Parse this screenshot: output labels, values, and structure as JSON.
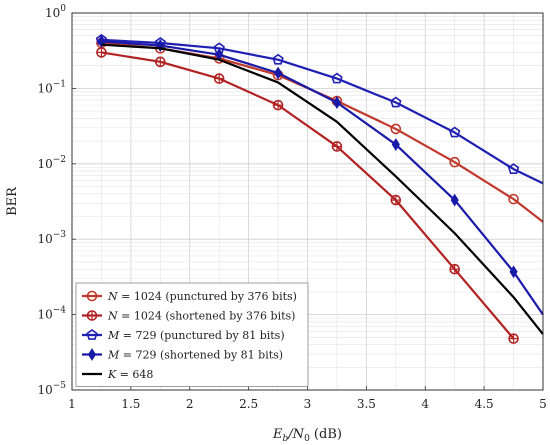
{
  "chart_data": {
    "type": "line",
    "xlabel_main": "E",
    "xlabel_sub": "b",
    "xlabel_mid": "/N",
    "xlabel_sub2": "0",
    "xlabel_tail": " (dB)",
    "ylabel": "BER",
    "xlim": [
      1,
      5
    ],
    "ylim": [
      1e-05,
      1
    ],
    "y_scale": "log",
    "grid": true,
    "legend_position": "bottom-left",
    "x_ticks": [
      "1",
      "1.5",
      "2",
      "2.5",
      "3",
      "3.5",
      "4",
      "4.5",
      "5"
    ],
    "y_ticks": [
      {
        "base": "10",
        "exp": "0"
      },
      {
        "base": "10",
        "exp": "−1"
      },
      {
        "base": "10",
        "exp": "−2"
      },
      {
        "base": "10",
        "exp": "−3"
      },
      {
        "base": "10",
        "exp": "−4"
      },
      {
        "base": "10",
        "exp": "−5"
      }
    ],
    "series": [
      {
        "legend_var": "N",
        "legend_text": " = 1024 (punctured by 376 bits)",
        "color": "#c0392b",
        "marker": "circle",
        "x": [
          1.25,
          1.75,
          2.25,
          2.75,
          3.25,
          3.75,
          4.25,
          4.75,
          5.0
        ],
        "y": [
          0.4,
          0.34,
          0.25,
          0.15,
          0.068,
          0.029,
          0.0105,
          0.0034,
          0.0017
        ]
      },
      {
        "legend_var": "N",
        "legend_text": " = 1024 (shortened by 376 bits)",
        "color": "#b22222",
        "marker": "circle-cross",
        "x": [
          1.25,
          1.75,
          2.25,
          2.75,
          3.25,
          3.75,
          4.25,
          4.75
        ],
        "y": [
          0.3,
          0.225,
          0.135,
          0.06,
          0.017,
          0.0033,
          0.0004,
          4.8e-05
        ]
      },
      {
        "legend_var": "M",
        "legend_text": " = 729 (punctured by 81 bits)",
        "color": "#1f1fb4",
        "marker": "pentagon",
        "x": [
          1.25,
          1.75,
          2.25,
          2.75,
          3.25,
          3.75,
          4.25,
          4.75,
          5.0
        ],
        "y": [
          0.44,
          0.4,
          0.34,
          0.24,
          0.135,
          0.065,
          0.026,
          0.0085,
          0.0055
        ]
      },
      {
        "legend_var": "M",
        "legend_text": " = 729 (shortened by 81 bits)",
        "color": "#1a1aa8",
        "marker": "diamond",
        "x": [
          1.25,
          1.75,
          2.25,
          2.75,
          3.25,
          3.75,
          4.25,
          4.75,
          5.0
        ],
        "y": [
          0.42,
          0.37,
          0.28,
          0.16,
          0.065,
          0.018,
          0.0033,
          0.00037,
          0.0001
        ]
      },
      {
        "legend_var": "K",
        "legend_text": " = 648",
        "color": "#000000",
        "marker": "none",
        "x": [
          1.25,
          1.75,
          2.25,
          2.75,
          3.25,
          3.75,
          4.25,
          4.75,
          5.0
        ],
        "y": [
          0.38,
          0.34,
          0.24,
          0.12,
          0.036,
          0.0068,
          0.0012,
          0.00017,
          5.5e-05
        ]
      }
    ]
  }
}
